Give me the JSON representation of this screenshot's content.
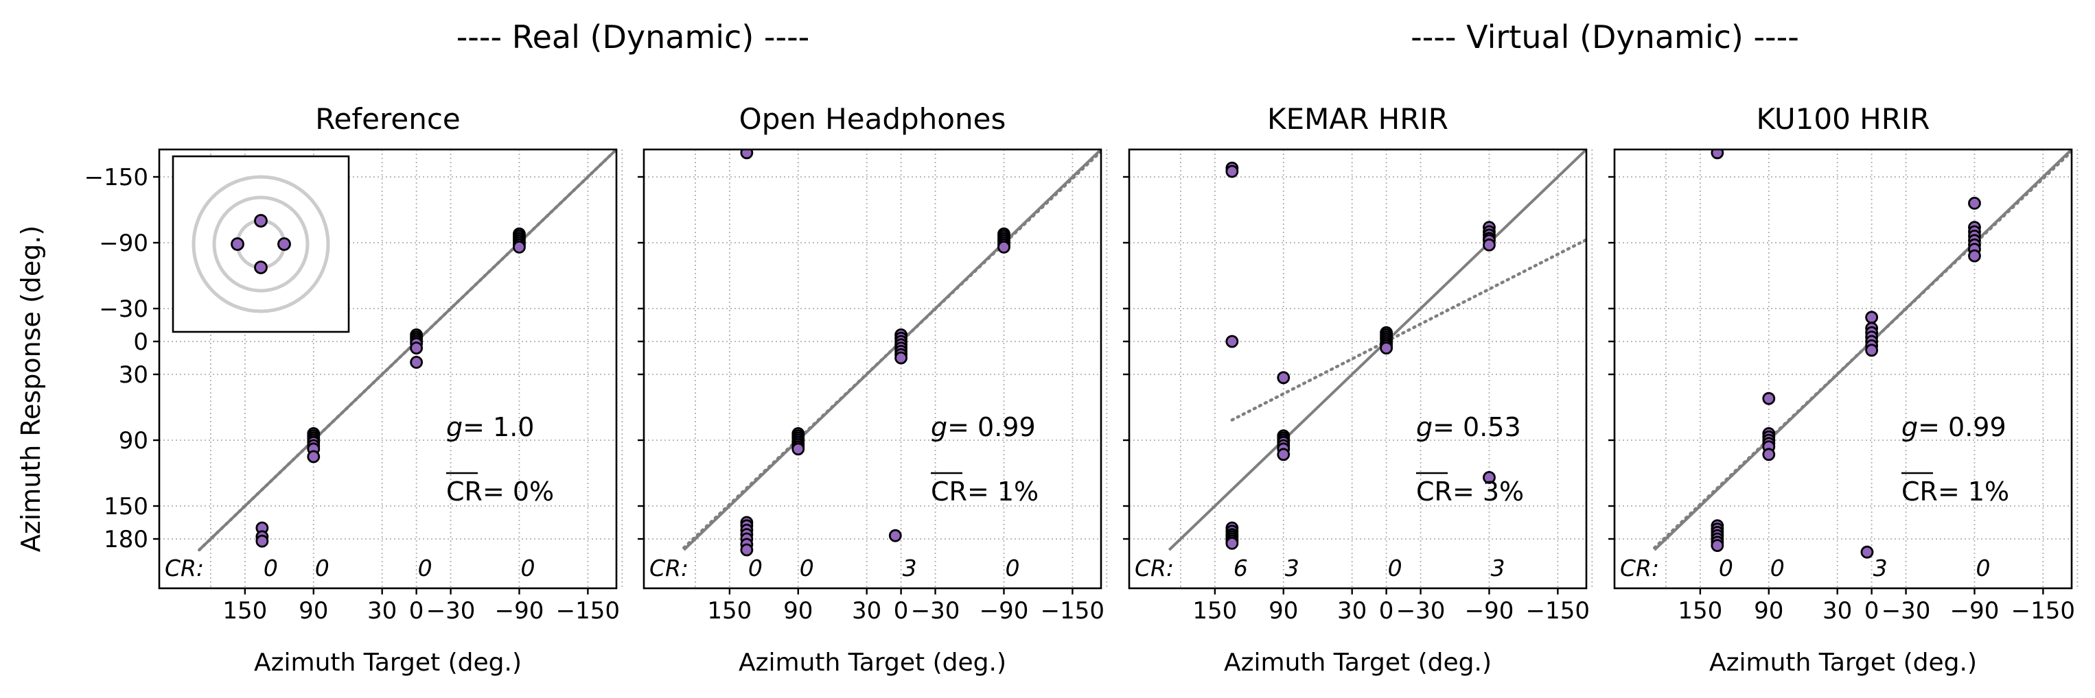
{
  "figure": {
    "group_titles": [
      "---- Real (Dynamic) ----",
      "---- Virtual (Dynamic) ----"
    ],
    "shared_xlabel": "Azimuth Target (deg.)",
    "shared_ylabel": "Azimuth Response (deg.)",
    "x_ticks": [
      150,
      90,
      30,
      0,
      -30,
      -90,
      -150
    ],
    "x_tick_labels": [
      "150",
      "90",
      "30",
      "0",
      "−30",
      "−90",
      "−150"
    ],
    "y_ticks": [
      -150,
      -90,
      -30,
      0,
      30,
      90,
      150,
      180
    ],
    "y_tick_labels": [
      "−150",
      "−90",
      "−30",
      "0",
      "30",
      "90",
      "150",
      "180"
    ],
    "colors": {
      "point_fill": "#9467bd",
      "point_edge": "#000000",
      "line": "#7f7f7f",
      "grid": "#b0b0b0",
      "inset_ring": "#cccccc"
    }
  },
  "chart_data": [
    {
      "type": "scatter",
      "title": "Reference",
      "xlabel": "Azimuth Target (deg.)",
      "ylabel": "Azimuth Response (deg.)",
      "xlim": [
        225,
        -175
      ],
      "ylim": [
        -175,
        225
      ],
      "grid": true,
      "annotations": {
        "gain_label": "g",
        "gain_value": "= 1.0",
        "cr_label": "CR",
        "cr_value": "= 0%",
        "cr_prefix": "CR:"
      },
      "confusion_counts": [
        {
          "x": 135,
          "label": "0"
        },
        {
          "x": 90,
          "label": "0"
        },
        {
          "x": 0,
          "label": "0"
        },
        {
          "x": -90,
          "label": "0"
        }
      ],
      "fit_gain": 1.0,
      "points": [
        {
          "x": 135,
          "y": -160
        },
        {
          "x": 135,
          "y": 170
        },
        {
          "x": 135,
          "y": 178
        },
        {
          "x": 135,
          "y": 182
        },
        {
          "x": 90,
          "y": 84
        },
        {
          "x": 90,
          "y": 86
        },
        {
          "x": 90,
          "y": 88
        },
        {
          "x": 90,
          "y": 90
        },
        {
          "x": 90,
          "y": 92
        },
        {
          "x": 90,
          "y": 95
        },
        {
          "x": 90,
          "y": 98
        },
        {
          "x": 90,
          "y": 105
        },
        {
          "x": 0,
          "y": -6
        },
        {
          "x": 0,
          "y": -4
        },
        {
          "x": 0,
          "y": -2
        },
        {
          "x": 0,
          "y": 0
        },
        {
          "x": 0,
          "y": 2
        },
        {
          "x": 0,
          "y": 6
        },
        {
          "x": 0,
          "y": 19
        },
        {
          "x": -90,
          "y": -98
        },
        {
          "x": -90,
          "y": -96
        },
        {
          "x": -90,
          "y": -94
        },
        {
          "x": -90,
          "y": -92
        },
        {
          "x": -90,
          "y": -90
        },
        {
          "x": -90,
          "y": -88
        },
        {
          "x": -90,
          "y": -86
        }
      ]
    },
    {
      "type": "scatter",
      "title": "Open Headphones",
      "xlabel": "Azimuth Target (deg.)",
      "ylabel": "",
      "xlim": [
        225,
        -175
      ],
      "ylim": [
        -175,
        225
      ],
      "grid": true,
      "annotations": {
        "gain_label": "g",
        "gain_value": "= 0.99",
        "cr_label": "CR",
        "cr_value": "= 1%",
        "cr_prefix": "CR:"
      },
      "confusion_counts": [
        {
          "x": 135,
          "label": "0"
        },
        {
          "x": 90,
          "label": "0"
        },
        {
          "x": 0,
          "label": "3"
        },
        {
          "x": -90,
          "label": "0"
        }
      ],
      "fit_gain": 0.99,
      "points": [
        {
          "x": 135,
          "y": -172
        },
        {
          "x": 135,
          "y": 165
        },
        {
          "x": 135,
          "y": 168
        },
        {
          "x": 135,
          "y": 172
        },
        {
          "x": 135,
          "y": 176
        },
        {
          "x": 135,
          "y": 180
        },
        {
          "x": 135,
          "y": 185
        },
        {
          "x": 135,
          "y": 190
        },
        {
          "x": 90,
          "y": 84
        },
        {
          "x": 90,
          "y": 86
        },
        {
          "x": 90,
          "y": 88
        },
        {
          "x": 90,
          "y": 90
        },
        {
          "x": 90,
          "y": 92
        },
        {
          "x": 90,
          "y": 94
        },
        {
          "x": 90,
          "y": 96
        },
        {
          "x": 90,
          "y": 98
        },
        {
          "x": 0,
          "y": -6
        },
        {
          "x": 0,
          "y": -3
        },
        {
          "x": 0,
          "y": 0
        },
        {
          "x": 0,
          "y": 3
        },
        {
          "x": 0,
          "y": 6
        },
        {
          "x": 0,
          "y": 9
        },
        {
          "x": 0,
          "y": 12
        },
        {
          "x": 0,
          "y": 15
        },
        {
          "x": 5,
          "y": 177
        },
        {
          "x": -90,
          "y": -98
        },
        {
          "x": -90,
          "y": -96
        },
        {
          "x": -90,
          "y": -94
        },
        {
          "x": -90,
          "y": -92
        },
        {
          "x": -90,
          "y": -90
        },
        {
          "x": -90,
          "y": -88
        },
        {
          "x": -90,
          "y": -86
        }
      ]
    },
    {
      "type": "scatter",
      "title": "KEMAR HRIR",
      "xlabel": "Azimuth Target (deg.)",
      "ylabel": "",
      "xlim": [
        225,
        -175
      ],
      "ylim": [
        -175,
        225
      ],
      "grid": true,
      "annotations": {
        "gain_label": "g",
        "gain_value": "= 0.53",
        "cr_label": "CR",
        "cr_value": "= 3%",
        "cr_prefix": "CR:"
      },
      "confusion_counts": [
        {
          "x": 135,
          "label": "6"
        },
        {
          "x": 90,
          "label": "3"
        },
        {
          "x": 0,
          "label": "0"
        },
        {
          "x": -90,
          "label": "3"
        }
      ],
      "fit_gain": 0.53,
      "points": [
        {
          "x": 135,
          "y": -158
        },
        {
          "x": 135,
          "y": -155
        },
        {
          "x": 135,
          "y": 0
        },
        {
          "x": 135,
          "y": 170
        },
        {
          "x": 135,
          "y": 173
        },
        {
          "x": 135,
          "y": 176
        },
        {
          "x": 135,
          "y": 178
        },
        {
          "x": 135,
          "y": 180
        },
        {
          "x": 135,
          "y": 182
        },
        {
          "x": 135,
          "y": 184
        },
        {
          "x": 90,
          "y": 33
        },
        {
          "x": 90,
          "y": 86
        },
        {
          "x": 90,
          "y": 88
        },
        {
          "x": 90,
          "y": 90
        },
        {
          "x": 90,
          "y": 92
        },
        {
          "x": 90,
          "y": 95
        },
        {
          "x": 90,
          "y": 98
        },
        {
          "x": 90,
          "y": 103
        },
        {
          "x": 0,
          "y": -8
        },
        {
          "x": 0,
          "y": -6
        },
        {
          "x": 0,
          "y": -4
        },
        {
          "x": 0,
          "y": -2
        },
        {
          "x": 0,
          "y": 0
        },
        {
          "x": 0,
          "y": 2
        },
        {
          "x": 0,
          "y": 4
        },
        {
          "x": 0,
          "y": 6
        },
        {
          "x": -90,
          "y": -104
        },
        {
          "x": -90,
          "y": -100
        },
        {
          "x": -90,
          "y": -97
        },
        {
          "x": -90,
          "y": -94
        },
        {
          "x": -90,
          "y": -92
        },
        {
          "x": -90,
          "y": -88
        },
        {
          "x": -90,
          "y": 124
        }
      ]
    },
    {
      "type": "scatter",
      "title": "KU100 HRIR",
      "xlabel": "Azimuth Target (deg.)",
      "ylabel": "",
      "xlim": [
        225,
        -175
      ],
      "ylim": [
        -175,
        225
      ],
      "grid": true,
      "annotations": {
        "gain_label": "g",
        "gain_value": "= 0.99",
        "cr_label": "CR",
        "cr_value": "= 1%",
        "cr_prefix": "CR:"
      },
      "confusion_counts": [
        {
          "x": 135,
          "label": "0"
        },
        {
          "x": 90,
          "label": "0"
        },
        {
          "x": 0,
          "label": "3"
        },
        {
          "x": -90,
          "label": "0"
        }
      ],
      "fit_gain": 0.99,
      "points": [
        {
          "x": 135,
          "y": -172
        },
        {
          "x": 135,
          "y": 168
        },
        {
          "x": 135,
          "y": 171
        },
        {
          "x": 135,
          "y": 174
        },
        {
          "x": 135,
          "y": 177
        },
        {
          "x": 135,
          "y": 180
        },
        {
          "x": 135,
          "y": 183
        },
        {
          "x": 135,
          "y": 186
        },
        {
          "x": 90,
          "y": 52
        },
        {
          "x": 90,
          "y": 84
        },
        {
          "x": 90,
          "y": 87
        },
        {
          "x": 90,
          "y": 90
        },
        {
          "x": 90,
          "y": 93
        },
        {
          "x": 90,
          "y": 96
        },
        {
          "x": 90,
          "y": 103
        },
        {
          "x": 0,
          "y": -22
        },
        {
          "x": 0,
          "y": -12
        },
        {
          "x": 0,
          "y": -8
        },
        {
          "x": 0,
          "y": -4
        },
        {
          "x": 0,
          "y": 0
        },
        {
          "x": 0,
          "y": 4
        },
        {
          "x": 0,
          "y": 8
        },
        {
          "x": 4,
          "y": 192
        },
        {
          "x": -90,
          "y": -126
        },
        {
          "x": -90,
          "y": -104
        },
        {
          "x": -90,
          "y": -100
        },
        {
          "x": -90,
          "y": -96
        },
        {
          "x": -90,
          "y": -92
        },
        {
          "x": -90,
          "y": -88
        },
        {
          "x": -90,
          "y": -84
        },
        {
          "x": -90,
          "y": -78
        }
      ]
    }
  ]
}
